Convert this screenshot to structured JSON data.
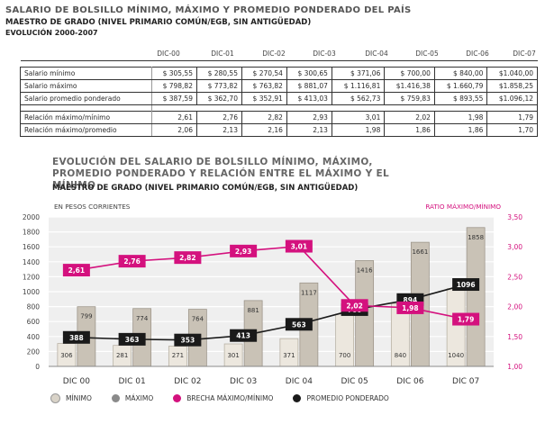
{
  "header": {
    "title": "SALARIO DE BOLSILLO MÍNIMO, MÁXIMO Y PROMEDIO PONDERADO DEL PAÍS",
    "subtitle": "MAESTRO DE GRADO (NIVEL PRIMARIO COMÚN/EGB, SIN ANTIGÜEDAD)",
    "period": "EVOLUCIÓN 2000-2007"
  },
  "table": {
    "columns": [
      "DIC-00",
      "DIC-01",
      "DIC-02",
      "DIC-03",
      "DIC-04",
      "DIC-05",
      "DIC-06",
      "DIC-07"
    ],
    "rows": [
      {
        "label": "Salario mínimo",
        "values": [
          "$ 305,55",
          "$ 280,55",
          "$ 270,54",
          "$ 300,65",
          "$ 371,06",
          "$ 700,00",
          "$ 840,00",
          "$1.040,00"
        ]
      },
      {
        "label": "Salario máximo",
        "values": [
          "$ 798,82",
          "$ 773,82",
          "$ 763,82",
          "$ 881,07",
          "$ 1.116,81",
          "$1.416,38",
          "$ 1.660,79",
          "$1.858,25"
        ]
      },
      {
        "label": "Salario promedio ponderado",
        "values": [
          "$ 387,59",
          "$ 362,70",
          "$ 352,91",
          "$ 413,03",
          "$ 562,73",
          "$ 759,83",
          "$ 893,55",
          "$1.096,12"
        ]
      },
      {
        "label": "Relación máximo/mínimo",
        "values": [
          "2,61",
          "2,76",
          "2,82",
          "2,93",
          "3,01",
          "2,02",
          "1,98",
          "1,79"
        ]
      },
      {
        "label": "Relación máximo/promedio",
        "values": [
          "2,06",
          "2,13",
          "2,16",
          "2,13",
          "1,98",
          "1,86",
          "1,86",
          "1,70"
        ]
      }
    ]
  },
  "chart_title": "EVOLUCIÓN DEL SALARIO DE BOLSILLO MÍNIMO, MÁXIMO, PROMEDIO PONDERADO Y RELACIÓN ENTRE EL MÁXIMO Y EL MÍNIMO",
  "chart_subtitle": "MAESTRO DE GRADO (NIVEL PRIMARIO COMÚN/EGB, SIN ANTIGÜEDAD)",
  "chart_data": {
    "type": "bar",
    "categories": [
      "DIC 00",
      "DIC 01",
      "DIC 02",
      "DIC 03",
      "DIC 04",
      "DIC 05",
      "DIC 06",
      "DIC 07"
    ],
    "ylabel": "EN PESOS CORRIENTES",
    "y2label": "RATIO MÁXIMO/MÍNIMO",
    "ylim": [
      0,
      2000
    ],
    "y2lim": [
      1.0,
      3.5
    ],
    "yticks": [
      "0",
      "200",
      "400",
      "600",
      "800",
      "1000",
      "1200",
      "1400",
      "1600",
      "1800",
      "2000"
    ],
    "y2ticks": [
      "1,00",
      "1,50",
      "2,00",
      "2,50",
      "3,00",
      "3,50"
    ],
    "grid": true,
    "legend_position": "bottom",
    "series": [
      {
        "name": "MÍNIMO",
        "kind": "bar",
        "color": "#ece7de",
        "values": [
          306,
          281,
          271,
          301,
          371,
          700,
          840,
          1040
        ],
        "labels": [
          "306",
          "281",
          "271",
          "301",
          "371",
          "700",
          "840",
          "1040"
        ]
      },
      {
        "name": "MÁXIMO",
        "kind": "bar",
        "color": "#c9c2b6",
        "values": [
          799,
          774,
          764,
          881,
          1117,
          1416,
          1661,
          1858
        ],
        "labels": [
          "799",
          "774",
          "764",
          "881",
          "1117",
          "1416",
          "1661",
          "1858"
        ]
      },
      {
        "name": "BRECHA MÁXIMO/MÍNIMO",
        "kind": "line",
        "axis": "right",
        "color": "#d4117e",
        "values": [
          2.61,
          2.76,
          2.82,
          2.93,
          3.01,
          2.02,
          1.98,
          1.79
        ],
        "labels": [
          "2,61",
          "2,76",
          "2,82",
          "2,93",
          "3,01",
          "2,02",
          "1,98",
          "1,79"
        ]
      },
      {
        "name": "PROMEDIO PONDERADO",
        "kind": "line",
        "axis": "left",
        "color": "#1a1a1a",
        "values": [
          388,
          363,
          353,
          413,
          563,
          760,
          894,
          1096
        ],
        "labels": [
          "388",
          "363",
          "353",
          "413",
          "563",
          "760",
          "894",
          "1096"
        ]
      }
    ]
  },
  "colors": {
    "accent": "#d4117e",
    "legend_min": "#d9d3c8",
    "legend_max": "#8a8a8a",
    "legend_brecha": "#d4117e",
    "legend_prom": "#1a1a1a"
  }
}
